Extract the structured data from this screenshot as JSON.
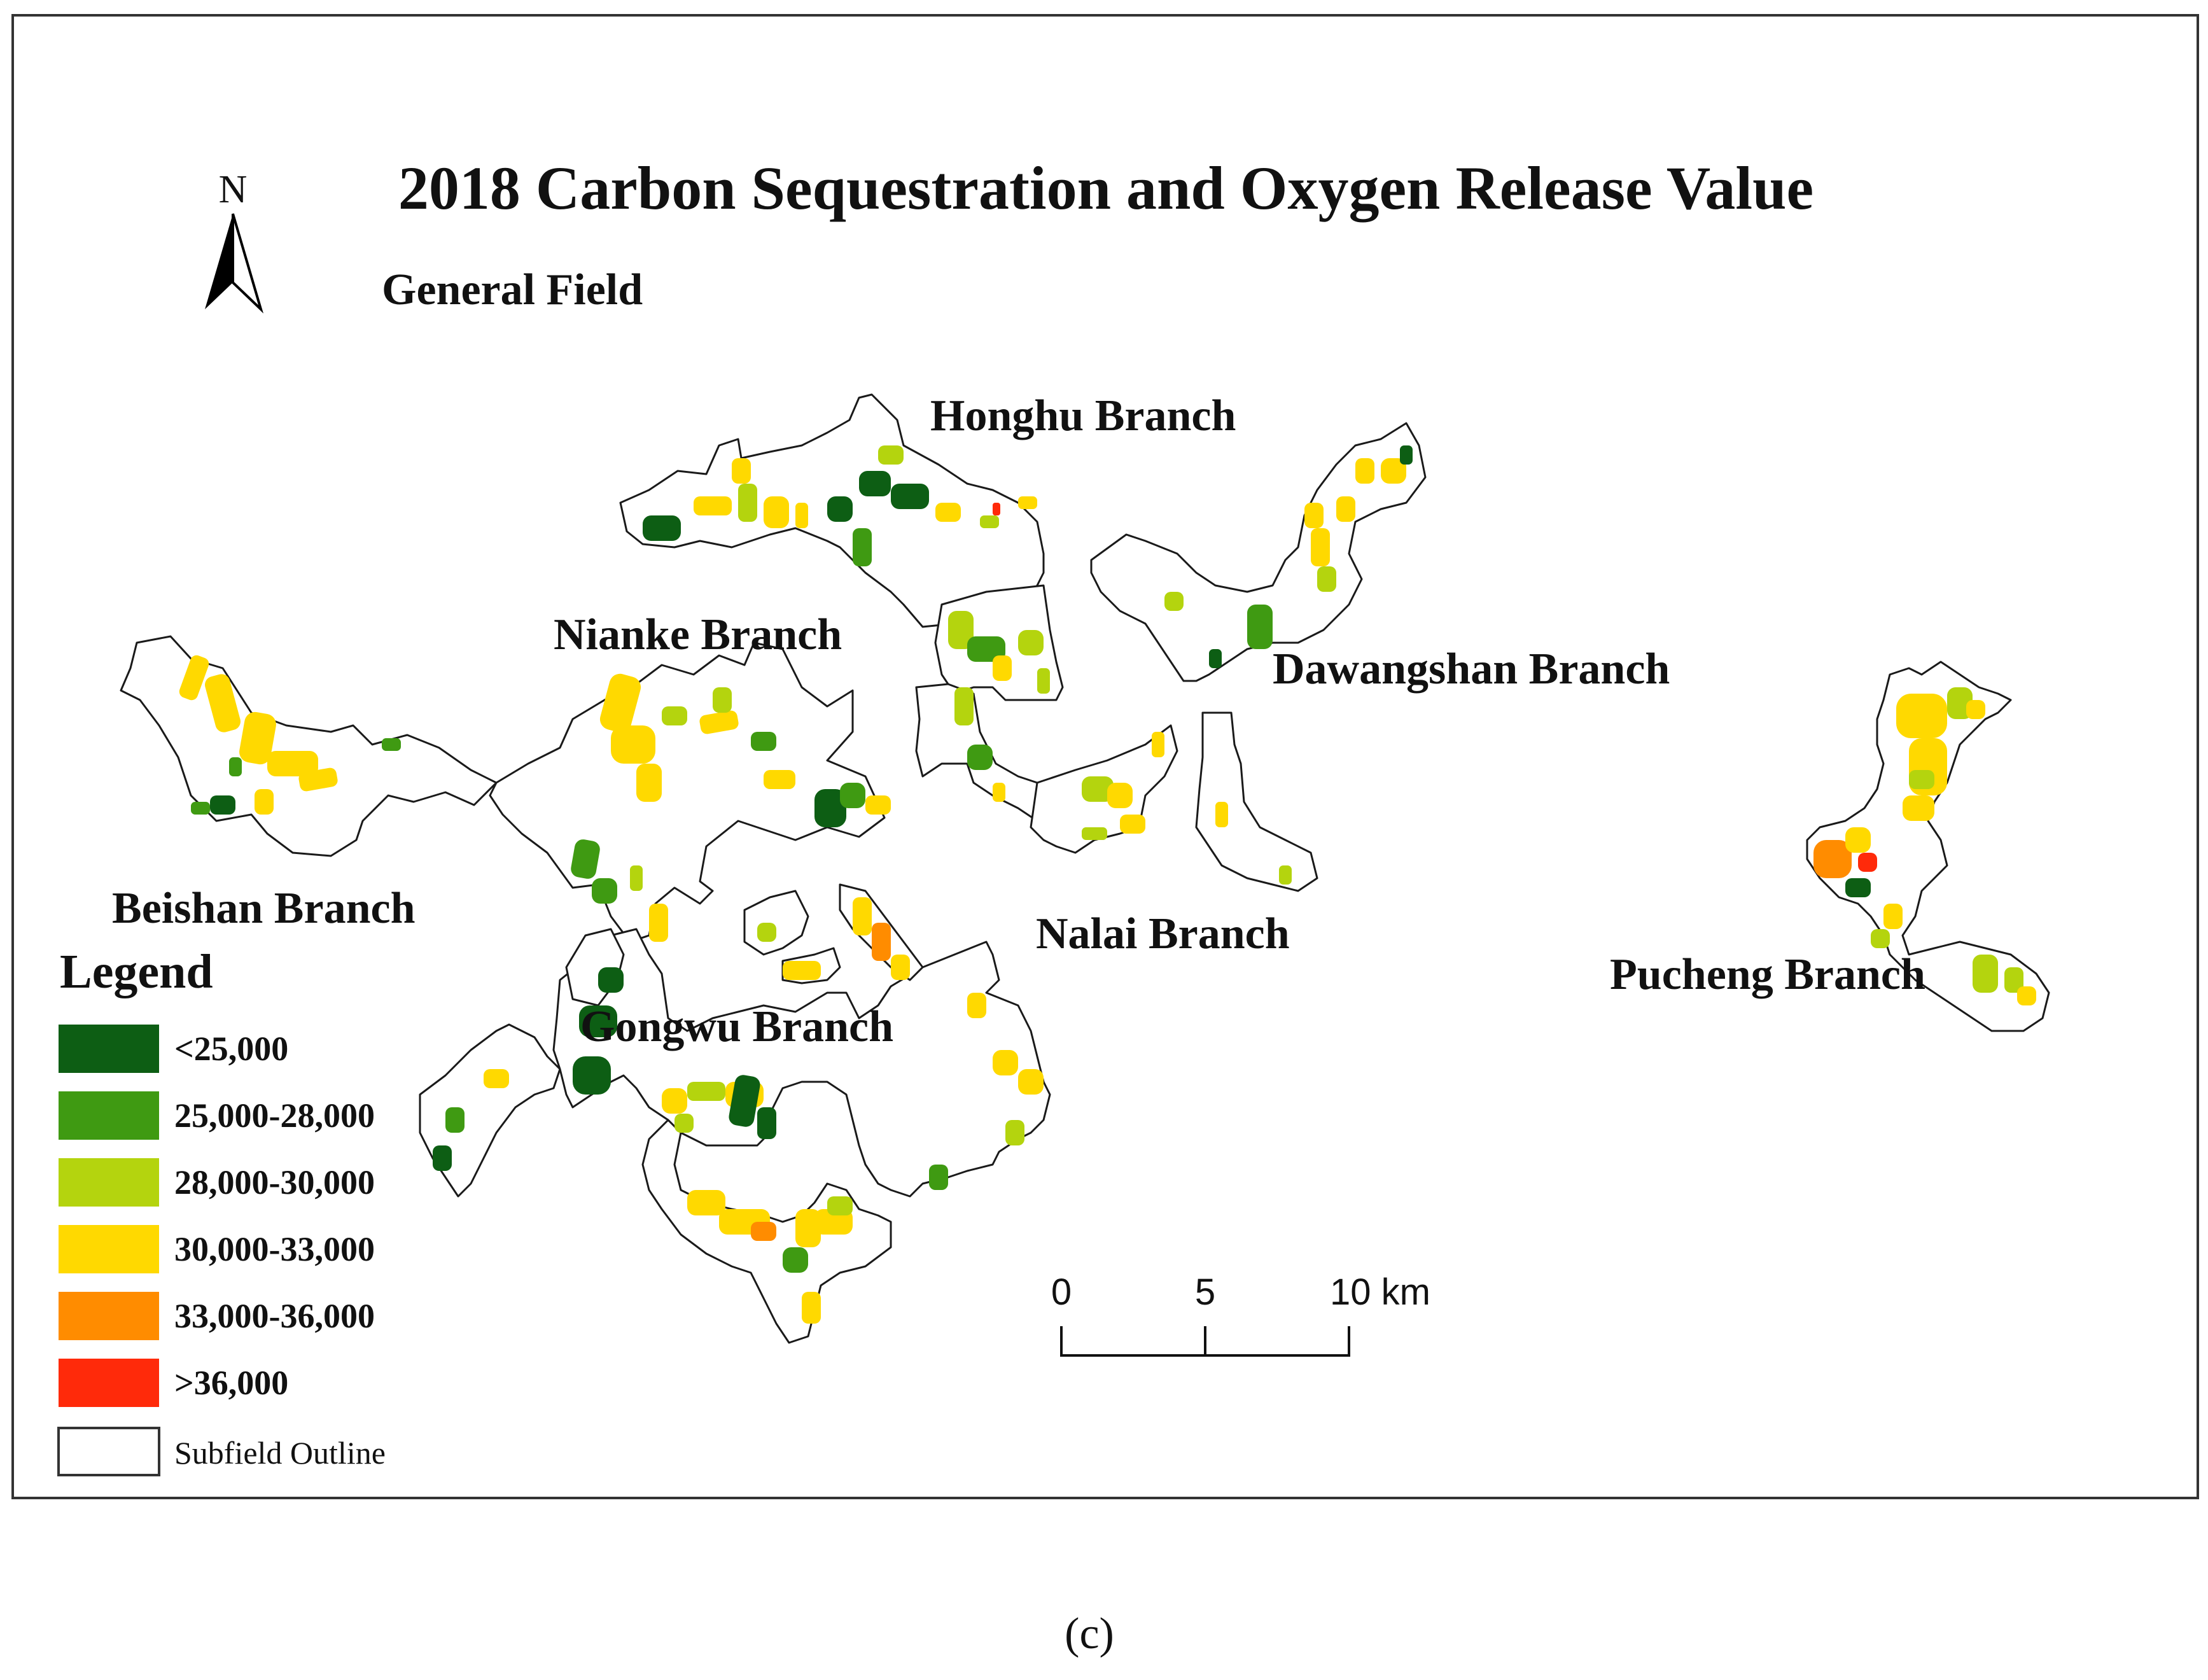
{
  "title": "2018 Carbon Sequestration and Oxygen Release Value",
  "north_arrow": {
    "label": "N",
    "icon": "north-arrow-icon"
  },
  "general_field_label": "General Field",
  "branches": [
    {
      "id": "honghu",
      "label": "Honghu Branch"
    },
    {
      "id": "nianke",
      "label": "Nianke Branch"
    },
    {
      "id": "dawangshan",
      "label": "Dawangshan Branch"
    },
    {
      "id": "beishan",
      "label": "Beishan Branch"
    },
    {
      "id": "nalai",
      "label": "Nalai Branch"
    },
    {
      "id": "pucheng",
      "label": "Pucheng Branch"
    },
    {
      "id": "gongwu",
      "label": "Gongwu Branch"
    }
  ],
  "legend": {
    "title": "Legend",
    "classes": [
      {
        "label": "<25,000",
        "color": "#0d5e14"
      },
      {
        "label": "25,000-28,000",
        "color": "#3f9a12"
      },
      {
        "label": "28,000-30,000",
        "color": "#b4d40e"
      },
      {
        "label": "30,000-33,000",
        "color": "#ffd900"
      },
      {
        "label": "33,000-36,000",
        "color": "#ff8c00"
      },
      {
        "label": ">36,000",
        "color": "#ff2a0a"
      }
    ],
    "outline_label": "Subfield Outline"
  },
  "scale_bar": {
    "ticks": [
      "0",
      "5",
      "10 km"
    ]
  },
  "caption": "(c)"
}
